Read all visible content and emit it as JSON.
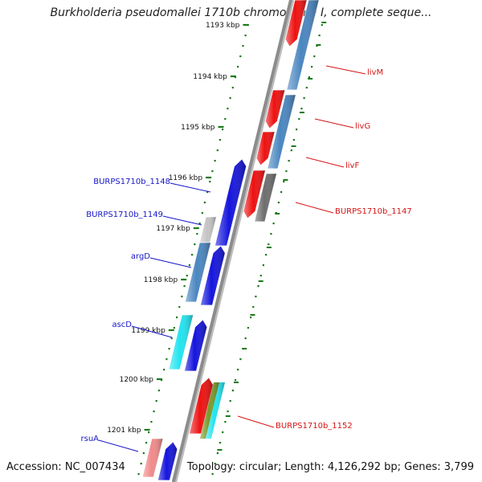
{
  "title": "Burkholderia pseudomallei 1710b chromosome I, complete seque...",
  "accession": "Accession: NC_007434",
  "topology": "Topology: circular; Length: 4,126,292 bp; Genes: 3,799",
  "colors": {
    "backbone": "#8c8c8c",
    "tick": "#1a7a1a",
    "forward_label": "#1515c8",
    "reverse_label": "#d41414",
    "red": "#ee1111",
    "blue": "#1515dd",
    "steel": "#4a86c0",
    "gray": "#6e6e6e",
    "lightgray": "#c4c4c4",
    "cyan": "#22e4f0",
    "olive": "#7a9a2a",
    "pink": "#f08a8a"
  },
  "ticks": [
    {
      "label": "1193 kbp"
    },
    {
      "label": "1194 kbp"
    },
    {
      "label": "1195 kbp"
    },
    {
      "label": "1196 kbp"
    },
    {
      "label": "1197 kbp"
    },
    {
      "label": "1198 kbp"
    },
    {
      "label": "1199 kbp"
    },
    {
      "label": "1200 kbp"
    },
    {
      "label": "1201 kbp"
    }
  ],
  "labels": {
    "forward": [
      "BURPS1710b_1148",
      "BURPS1710b_1149",
      "argD",
      "ascD",
      "rsuA"
    ],
    "reverse": [
      "livM",
      "livG",
      "livF",
      "BURPS1710b_1147",
      "BURPS1710b_1152"
    ]
  }
}
